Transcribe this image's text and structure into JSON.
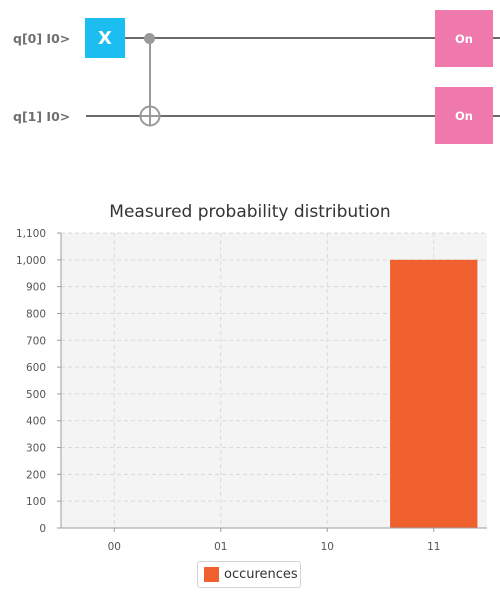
{
  "circuit": {
    "qubits": [
      {
        "label": "q[0] I0>"
      },
      {
        "label": "q[1] I0>"
      }
    ],
    "gates": {
      "x_label": "X",
      "measure_labels": [
        "On",
        "On"
      ]
    },
    "colors": {
      "x_gate": "#1cbdf0",
      "measure_gate": "#ef78ad",
      "wire": "#6b6b6b",
      "control": "#9a9a9a"
    }
  },
  "chart_data": {
    "type": "bar",
    "title": "Measured probability distribution",
    "categories": [
      "00",
      "01",
      "10",
      "11"
    ],
    "series": [
      {
        "name": "occurences",
        "values": [
          0,
          0,
          0,
          1000
        ],
        "color": "#f0602e"
      }
    ],
    "ylim": [
      0,
      1100
    ],
    "yticks": [
      0,
      100,
      200,
      300,
      400,
      500,
      600,
      700,
      800,
      900,
      1000,
      1100
    ],
    "ytick_labels": [
      "0",
      "100",
      "200",
      "300",
      "400",
      "500",
      "600",
      "700",
      "800",
      "900",
      "1,000",
      "1,100"
    ],
    "grid": true,
    "legend": "bottom-center"
  }
}
